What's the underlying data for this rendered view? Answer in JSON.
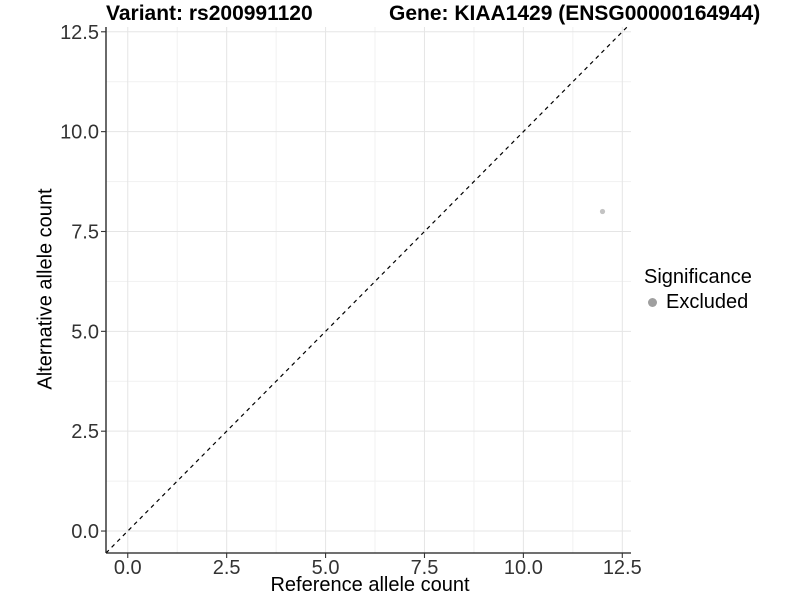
{
  "chart_data": {
    "type": "scatter",
    "title_left": "Variant: rs200991120",
    "title_right": "Gene: KIAA1429 (ENSG00000164944)",
    "xlabel": "Reference allele count",
    "ylabel": "Alternative allele count",
    "xlim": [
      -0.55,
      12.72
    ],
    "ylim": [
      -0.55,
      12.62
    ],
    "x_ticks": [
      0,
      2.5,
      5,
      7.5,
      10,
      12.5
    ],
    "y_ticks": [
      0,
      2.5,
      5,
      7.5,
      10,
      12.5
    ],
    "x_tick_labels": [
      "0.0",
      "2.5",
      "5.0",
      "7.5",
      "10.0",
      "12.5"
    ],
    "y_tick_labels": [
      "0.0",
      "2.5",
      "5.0",
      "7.5",
      "10.0",
      "12.5"
    ],
    "grid": {
      "major": true,
      "minor": true,
      "minor_step": 1.25
    },
    "identity_line": {
      "equation": "y = x",
      "style": "dashed",
      "color": "#000000"
    },
    "series": [
      {
        "name": "Excluded",
        "point_color": "#c3c3c3",
        "points": [
          {
            "x": 12,
            "y": 8
          }
        ]
      }
    ],
    "legend": {
      "title": "Significance",
      "position": "right",
      "entries": [
        {
          "label": "Excluded",
          "swatch_color": "#9f9f9f"
        }
      ]
    },
    "colors": {
      "grid_major": "#e5e5e5",
      "grid_minor": "#f1f1f1",
      "axis_line": "#1a1a1a",
      "tick_mark": "#333333",
      "tick_label": "#333333",
      "background": "#ffffff"
    }
  }
}
